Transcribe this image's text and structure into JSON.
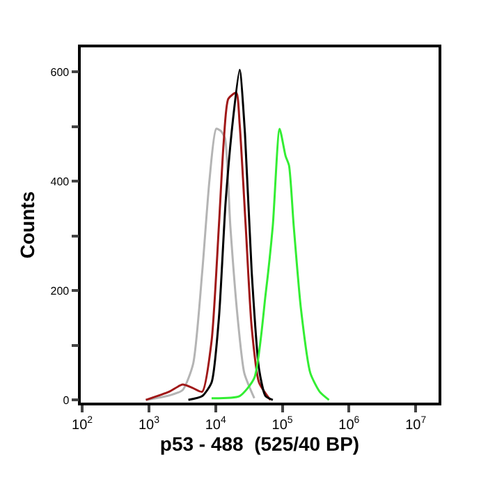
{
  "chart_data": {
    "type": "line",
    "xlabel": "p53 - 488  (525/40 BP)",
    "ylabel": "Counts",
    "log": "x",
    "xlim": [
      95,
      22000000
    ],
    "xticks": [
      {
        "value": 100,
        "label": "10$^{2}$"
      },
      {
        "value": 1000,
        "label": "10$^{3}$"
      },
      {
        "value": 10000,
        "label": "10$^{4}$"
      },
      {
        "value": 100000,
        "label": "10$^{5}$"
      },
      {
        "value": 1000000,
        "label": "10$^{6}$"
      },
      {
        "value": 10000000,
        "label": "10$^{7}$"
      }
    ],
    "ylim": [
      -5,
      645
    ],
    "yticks": [
      0,
      {
        "value": 100,
        "label": null
      },
      200,
      {
        "value": 300,
        "label": null
      },
      400,
      {
        "value": 500,
        "label": null
      },
      600
    ],
    "marker": "none",
    "line_style": "solid",
    "series": [
      {
        "color": "#b4b4b4",
        "x": [
          900,
          2000,
          3200,
          4600,
          6300,
          8100,
          10200,
          12000,
          13800,
          16600,
          21400,
          26900,
          38000
        ],
        "values": [
          0,
          8,
          18,
          66,
          235,
          403,
          496,
          492,
          479,
          319,
          150,
          49,
          3
        ]
      },
      {
        "color": "#a01818",
        "x": [
          900,
          2000,
          3200,
          4500,
          6300,
          8700,
          11200,
          13200,
          15500,
          20400,
          22900,
          28200,
          34700,
          44700,
          66000
        ],
        "values": [
          0,
          15,
          28,
          22,
          15,
          108,
          319,
          471,
          551,
          562,
          505,
          319,
          133,
          32,
          0
        ]
      },
      {
        "color": "#000000",
        "x": [
          3900,
          6300,
          8700,
          11200,
          14100,
          18200,
          22900,
          27500,
          34700,
          44700,
          56000,
          72000
        ],
        "values": [
          0,
          7,
          32,
          150,
          361,
          513,
          604,
          488,
          235,
          57,
          7,
          0
        ]
      },
      {
        "color": "#33ee33",
        "x": [
          8700,
          22900,
          38000,
          56000,
          72000,
          91000,
          112000,
          126000,
          148000,
          190000,
          263000,
          363000,
          500000
        ],
        "values": [
          3,
          7,
          40,
          192,
          319,
          496,
          446,
          429,
          319,
          167,
          49,
          15,
          0
        ]
      }
    ]
  }
}
